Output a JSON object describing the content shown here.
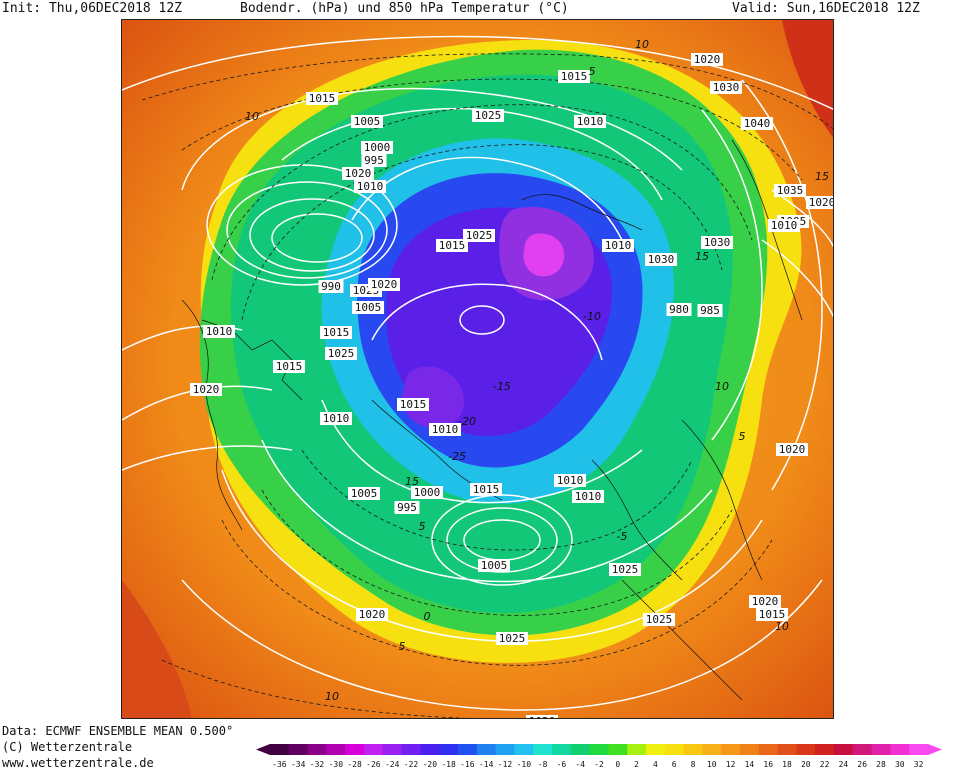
{
  "header": {
    "init": "Init: Thu,06DEC2018 12Z",
    "title": "Bodendr. (hPa)  und 850 hPa Temperatur (°C)",
    "valid": "Valid: Sun,16DEC2018 12Z"
  },
  "footer": {
    "data_line": "Data: ECMWF ENSEMBLE MEAN 0.500°",
    "copyright": "(C) Wetterzentrale",
    "url": "www.wetterzentrale.de"
  },
  "colors": {
    "outer": "#e05a10",
    "orange": "#f08a18",
    "yellow": "#f6ea10",
    "light_green": "#38d848",
    "green": "#12c878",
    "cyan": "#18c0e8",
    "blue": "#2848f0",
    "purple": "#5820e8",
    "violet": "#9030e0",
    "magenta": "#e040f0",
    "isobar": "#ffffff",
    "isotherm": "#1a1a1a"
  },
  "isobar_labels": [
    "1020",
    "1015",
    "1010",
    "1005",
    "1000",
    "995",
    "1020",
    "1010",
    "1015",
    "1025",
    "1030",
    "1040",
    "1035",
    "1020",
    "1005",
    "1010",
    "1015",
    "1025",
    "1010",
    "1030",
    "1030",
    "980",
    "985",
    "990",
    "1025",
    "1020",
    "1005",
    "1010",
    "1015",
    "1025",
    "1020",
    "1015",
    "1010",
    "1015",
    "1010",
    "1005",
    "1000",
    "995",
    "1015",
    "1010",
    "1010",
    "1005",
    "1025",
    "1020",
    "1015",
    "1020",
    "1025",
    "1020",
    "1025",
    "1020"
  ],
  "isotherm_labels": [
    "10",
    "10",
    "5",
    "5",
    "15",
    "-15",
    "-20",
    "-25",
    "10",
    "5",
    "10",
    "15",
    "15",
    "10",
    "5",
    "0",
    "-5",
    "-10"
  ],
  "scale": {
    "values": [
      "-36",
      "-34",
      "-32",
      "-30",
      "-28",
      "-26",
      "-24",
      "-22",
      "-20",
      "-18",
      "-16",
      "-14",
      "-12",
      "-10",
      "-8",
      "-6",
      "-4",
      "-2",
      "0",
      "2",
      "4",
      "6",
      "8",
      "10",
      "12",
      "14",
      "16",
      "18",
      "20",
      "22",
      "24",
      "26",
      "28",
      "30",
      "32"
    ],
    "colors": [
      "#400040",
      "#600060",
      "#8a008a",
      "#b000b0",
      "#d800d8",
      "#c020f0",
      "#9a20f0",
      "#7020f0",
      "#4a20f0",
      "#3030f0",
      "#2050f0",
      "#2080f0",
      "#20a0f0",
      "#20c0f0",
      "#20e0d0",
      "#10d8a0",
      "#10d070",
      "#20d840",
      "#40e020",
      "#a8f010",
      "#f0f010",
      "#f8e010",
      "#f8c810",
      "#f8b018",
      "#f89818",
      "#f08018",
      "#e86818",
      "#e05018",
      "#d83818",
      "#d02020",
      "#c81040",
      "#d01878",
      "#e020a8",
      "#f030d0",
      "#f848f0"
    ]
  }
}
